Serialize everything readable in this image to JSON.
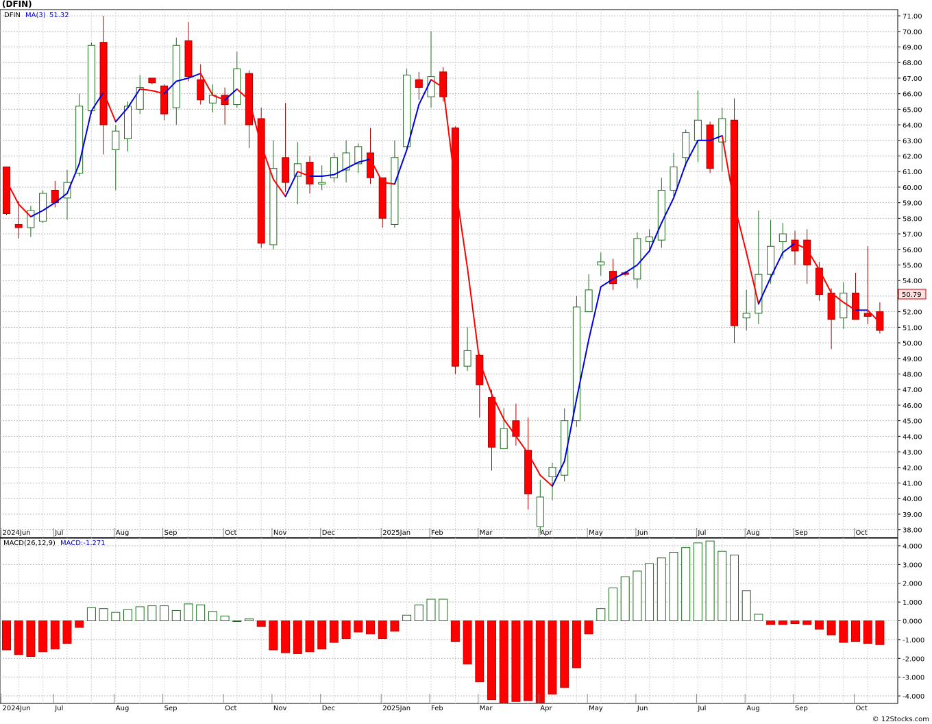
{
  "header": {
    "title": "(DFIN)"
  },
  "footer": {
    "credit": "© 12Stocks.com"
  },
  "colors": {
    "up": "#1c6b1c",
    "down": "#ff0000",
    "ma_up": "#0000dd",
    "ma_down": "#ff0000",
    "grid": "#b8b8b8",
    "last_price_box": "#ffe0e0"
  },
  "chart_data": [
    {
      "type": "candlestick",
      "title": "DFIN",
      "legend": [
        "DFIN",
        "MA(3)",
        "51.32"
      ],
      "ylim": [
        37.5,
        71.4
      ],
      "y_ticks": [
        "38.00",
        "39.00",
        "40.00",
        "41.00",
        "42.00",
        "43.00",
        "44.00",
        "45.00",
        "46.00",
        "47.00",
        "48.00",
        "49.00",
        "50.00",
        "51.00",
        "52.00",
        "53.00",
        "54.00",
        "55.00",
        "56.00",
        "57.00",
        "58.00",
        "59.00",
        "60.00",
        "61.00",
        "62.00",
        "63.00",
        "64.00",
        "65.00",
        "66.00",
        "67.00",
        "68.00",
        "69.00",
        "70.00",
        "71.00"
      ],
      "last_price_label": "50.79",
      "x_labels": [
        "2024Jun",
        "Jul",
        "Aug",
        "Sep",
        "Oct",
        "Nov",
        "Dec",
        "2025Jan",
        "Feb",
        "Mar",
        "Apr",
        "May",
        "Jun",
        "Jul",
        "Aug",
        "Sep",
        "Oct"
      ],
      "x_label_weeks": [
        0,
        4,
        9,
        13,
        18,
        22,
        26,
        31,
        35,
        39,
        44,
        48,
        52,
        57,
        61,
        65,
        70
      ],
      "weeks": [
        {
          "o": 61.3,
          "h": 61.3,
          "l": 58.2,
          "c": 58.3
        },
        {
          "o": 57.6,
          "h": 59.1,
          "l": 56.7,
          "c": 57.4
        },
        {
          "o": 57.4,
          "h": 58.8,
          "l": 56.8,
          "c": 58.5
        },
        {
          "o": 57.8,
          "h": 59.8,
          "l": 57.7,
          "c": 59.6
        },
        {
          "o": 59.8,
          "h": 60.4,
          "l": 58.7,
          "c": 59.0
        },
        {
          "o": 59.3,
          "h": 61.1,
          "l": 57.9,
          "c": 60.3
        },
        {
          "o": 60.9,
          "h": 66.0,
          "l": 60.7,
          "c": 65.2
        },
        {
          "o": 64.9,
          "h": 69.3,
          "l": 64.7,
          "c": 69.1
        },
        {
          "o": 69.3,
          "h": 71.0,
          "l": 62.1,
          "c": 64.0
        },
        {
          "o": 62.4,
          "h": 64.0,
          "l": 59.8,
          "c": 63.6
        },
        {
          "o": 63.1,
          "h": 65.5,
          "l": 62.3,
          "c": 65.2
        },
        {
          "o": 65.0,
          "h": 67.2,
          "l": 64.7,
          "c": 66.4
        },
        {
          "o": 67.0,
          "h": 67.0,
          "l": 66.6,
          "c": 66.7
        },
        {
          "o": 66.5,
          "h": 66.6,
          "l": 64.3,
          "c": 64.7
        },
        {
          "o": 65.1,
          "h": 69.6,
          "l": 64.0,
          "c": 69.1
        },
        {
          "o": 69.4,
          "h": 70.6,
          "l": 66.8,
          "c": 67.1
        },
        {
          "o": 66.9,
          "h": 67.9,
          "l": 65.3,
          "c": 65.6
        },
        {
          "o": 65.4,
          "h": 66.6,
          "l": 64.8,
          "c": 65.9
        },
        {
          "o": 65.9,
          "h": 66.4,
          "l": 64.0,
          "c": 65.3
        },
        {
          "o": 65.3,
          "h": 68.7,
          "l": 65.1,
          "c": 67.6
        },
        {
          "o": 67.3,
          "h": 67.5,
          "l": 62.5,
          "c": 64.0
        },
        {
          "o": 64.4,
          "h": 65.1,
          "l": 56.1,
          "c": 56.4
        },
        {
          "o": 56.3,
          "h": 63.0,
          "l": 56.0,
          "c": 61.2
        },
        {
          "o": 61.9,
          "h": 65.4,
          "l": 59.7,
          "c": 60.3
        },
        {
          "o": 60.7,
          "h": 62.9,
          "l": 58.9,
          "c": 61.5
        },
        {
          "o": 61.6,
          "h": 62.0,
          "l": 59.6,
          "c": 60.2
        },
        {
          "o": 60.2,
          "h": 61.4,
          "l": 59.8,
          "c": 60.3
        },
        {
          "o": 60.6,
          "h": 62.2,
          "l": 60.3,
          "c": 61.9
        },
        {
          "o": 61.1,
          "h": 63.0,
          "l": 60.3,
          "c": 62.2
        },
        {
          "o": 61.5,
          "h": 62.8,
          "l": 60.9,
          "c": 62.6
        },
        {
          "o": 62.2,
          "h": 63.8,
          "l": 60.2,
          "c": 60.6
        },
        {
          "o": 60.6,
          "h": 60.6,
          "l": 57.4,
          "c": 58.0
        },
        {
          "o": 57.6,
          "h": 63.0,
          "l": 57.4,
          "c": 61.9
        },
        {
          "o": 62.6,
          "h": 67.6,
          "l": 62.3,
          "c": 67.2
        },
        {
          "o": 66.9,
          "h": 67.4,
          "l": 65.6,
          "c": 66.4
        },
        {
          "o": 65.8,
          "h": 70.0,
          "l": 65.1,
          "c": 67.1
        },
        {
          "o": 67.4,
          "h": 67.7,
          "l": 65.5,
          "c": 65.8
        },
        {
          "o": 63.8,
          "h": 63.9,
          "l": 48.0,
          "c": 48.5
        },
        {
          "o": 48.5,
          "h": 51.0,
          "l": 48.2,
          "c": 49.5
        },
        {
          "o": 49.2,
          "h": 49.3,
          "l": 45.2,
          "c": 47.3
        },
        {
          "o": 46.5,
          "h": 47.0,
          "l": 41.8,
          "c": 43.3
        },
        {
          "o": 43.2,
          "h": 45.8,
          "l": 43.2,
          "c": 44.5
        },
        {
          "o": 45.0,
          "h": 46.1,
          "l": 43.4,
          "c": 44.0
        },
        {
          "o": 43.1,
          "h": 45.2,
          "l": 39.3,
          "c": 40.3
        },
        {
          "o": 38.2,
          "h": 41.2,
          "l": 37.8,
          "c": 40.1
        },
        {
          "o": 41.4,
          "h": 42.3,
          "l": 39.9,
          "c": 42.0
        },
        {
          "o": 41.5,
          "h": 45.8,
          "l": 41.1,
          "c": 45.0
        },
        {
          "o": 45.0,
          "h": 53.0,
          "l": 44.6,
          "c": 52.3
        },
        {
          "o": 52.0,
          "h": 54.4,
          "l": 52.0,
          "c": 53.4
        },
        {
          "o": 55.0,
          "h": 55.8,
          "l": 54.3,
          "c": 55.2
        },
        {
          "o": 54.6,
          "h": 55.4,
          "l": 53.4,
          "c": 53.8
        },
        {
          "o": 54.5,
          "h": 54.6,
          "l": 54.3,
          "c": 54.4
        },
        {
          "o": 54.1,
          "h": 57.1,
          "l": 53.5,
          "c": 56.7
        },
        {
          "o": 56.5,
          "h": 57.3,
          "l": 55.8,
          "c": 56.8
        },
        {
          "o": 56.6,
          "h": 60.6,
          "l": 56.1,
          "c": 59.8
        },
        {
          "o": 59.8,
          "h": 62.2,
          "l": 59.4,
          "c": 61.3
        },
        {
          "o": 61.9,
          "h": 63.7,
          "l": 61.3,
          "c": 63.5
        },
        {
          "o": 63.0,
          "h": 66.2,
          "l": 61.6,
          "c": 64.3
        },
        {
          "o": 64.0,
          "h": 64.2,
          "l": 60.9,
          "c": 61.2
        },
        {
          "o": 62.9,
          "h": 65.1,
          "l": 61.0,
          "c": 64.4
        },
        {
          "o": 64.3,
          "h": 65.7,
          "l": 50.0,
          "c": 51.1
        },
        {
          "o": 51.6,
          "h": 53.4,
          "l": 50.8,
          "c": 51.9
        },
        {
          "o": 51.9,
          "h": 58.5,
          "l": 51.2,
          "c": 54.4
        },
        {
          "o": 54.4,
          "h": 57.9,
          "l": 53.8,
          "c": 56.2
        },
        {
          "o": 56.5,
          "h": 57.7,
          "l": 55.4,
          "c": 57.0
        },
        {
          "o": 56.6,
          "h": 57.2,
          "l": 55.0,
          "c": 55.9
        },
        {
          "o": 56.6,
          "h": 57.3,
          "l": 53.8,
          "c": 55.0
        },
        {
          "o": 54.8,
          "h": 55.2,
          "l": 52.7,
          "c": 53.1
        },
        {
          "o": 53.2,
          "h": 53.5,
          "l": 49.6,
          "c": 51.5
        },
        {
          "o": 51.6,
          "h": 53.9,
          "l": 50.9,
          "c": 53.2
        },
        {
          "o": 53.2,
          "h": 54.5,
          "l": 51.5,
          "c": 51.5
        },
        {
          "o": 51.9,
          "h": 56.2,
          "l": 51.2,
          "c": 51.7
        },
        {
          "o": 52.0,
          "h": 52.6,
          "l": 50.6,
          "c": 50.8
        }
      ],
      "ma3": [
        60.4,
        58.9,
        58.1,
        58.5,
        59.0,
        59.6,
        61.5,
        64.9,
        66.1,
        64.2,
        65.1,
        66.3,
        66.2,
        66.0,
        66.8,
        67.0,
        67.3,
        65.9,
        65.6,
        66.3,
        65.6,
        62.7,
        60.5,
        59.4,
        61.0,
        60.7,
        60.7,
        60.8,
        61.2,
        61.6,
        61.8,
        60.3,
        60.2,
        62.4,
        65.3,
        66.9,
        66.4,
        60.1,
        54.8,
        48.8,
        46.7,
        45.1,
        44.0,
        42.9,
        41.5,
        40.8,
        42.4,
        46.4,
        50.2,
        53.6,
        54.1,
        54.5,
        55.0,
        55.9,
        57.7,
        59.3,
        61.5,
        63.0,
        63.0,
        63.3,
        58.9,
        55.8,
        52.5,
        54.2,
        55.8,
        56.4,
        56.0,
        54.7,
        53.2,
        52.6,
        52.1,
        52.1,
        51.3
      ]
    },
    {
      "type": "bar",
      "title": "MACD(26,12,9)",
      "legend": [
        "MACD(26,12,9)",
        "MACD:-1.271"
      ],
      "ylim": [
        -4.4,
        4.4
      ],
      "y_ticks": [
        "-4.000",
        "-3.000",
        "-2.000",
        "-1.000",
        "0.000",
        "1.000",
        "2.000",
        "3.000",
        "4.000"
      ],
      "x_labels": [
        "2024Jun",
        "Jul",
        "Aug",
        "Sep",
        "Oct",
        "Nov",
        "Dec",
        "2025Jan",
        "Feb",
        "Mar",
        "Apr",
        "May",
        "Jun",
        "Jul",
        "Aug",
        "Sep",
        "Oct"
      ],
      "values": [
        -1.55,
        -1.8,
        -1.9,
        -1.65,
        -1.5,
        -1.2,
        -0.35,
        0.7,
        0.65,
        0.45,
        0.6,
        0.75,
        0.8,
        0.8,
        0.55,
        0.9,
        0.85,
        0.5,
        0.25,
        0.0,
        0.1,
        -0.3,
        -1.55,
        -1.7,
        -1.75,
        -1.65,
        -1.5,
        -1.15,
        -0.95,
        -0.6,
        -0.7,
        -0.95,
        -0.55,
        0.3,
        0.85,
        1.15,
        1.15,
        -1.1,
        -2.3,
        -3.25,
        -4.2,
        -4.35,
        -4.3,
        -4.25,
        -4.35,
        -3.9,
        -3.55,
        -2.5,
        -0.7,
        0.65,
        1.75,
        2.35,
        2.65,
        3.05,
        3.35,
        3.65,
        3.9,
        4.15,
        4.25,
        3.7,
        3.5,
        1.6,
        0.35,
        -0.2,
        -0.2,
        -0.15,
        -0.2,
        -0.45,
        -0.75,
        -1.15,
        -1.1,
        -1.2,
        -1.27
      ]
    }
  ]
}
